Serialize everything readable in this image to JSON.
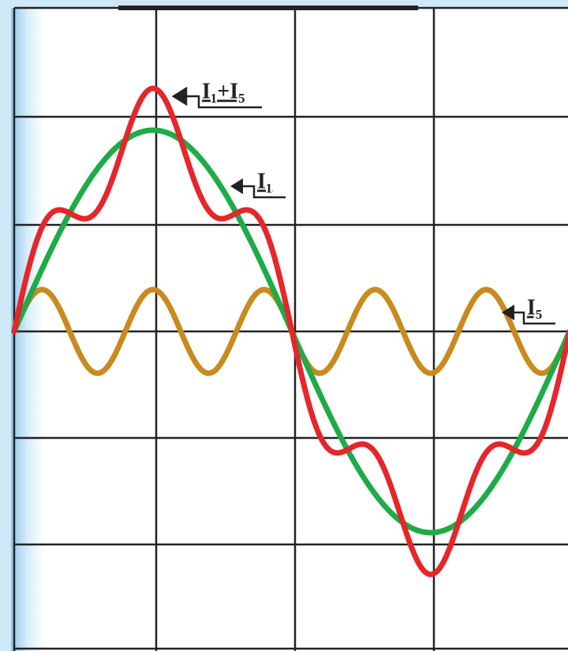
{
  "labels": {
    "sum": "I₁+I₅",
    "fundamental": "I₁",
    "fifth_harmonic": "I₅"
  }
}
